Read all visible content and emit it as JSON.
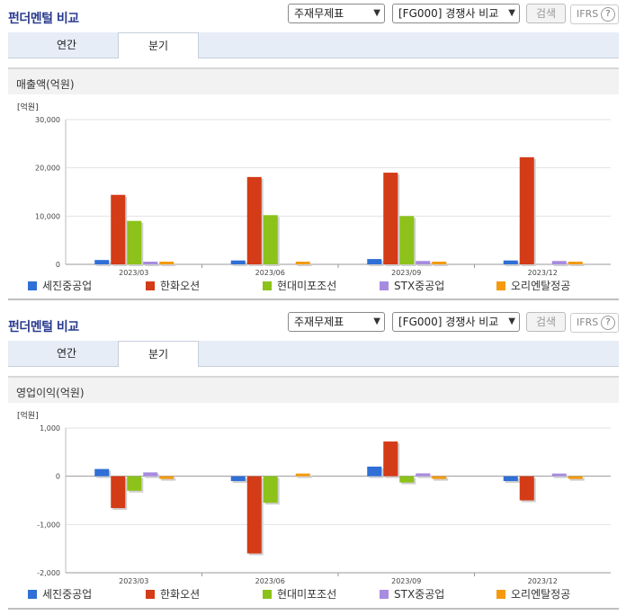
{
  "panels": [
    {
      "title": "펀더멘털 비교",
      "select1": "주재무제표",
      "select2": "[FG000] 경쟁사 비교",
      "search_btn": "검색",
      "ifrs": "IFRS",
      "tabs": [
        "연간",
        "분기"
      ],
      "active_tab": 1,
      "section_title": "매출액(억원)"
    },
    {
      "title": "펀더멘털 비교",
      "select1": "주재무제표",
      "select2": "[FG000] 경쟁사 비교",
      "search_btn": "검색",
      "ifrs": "IFRS",
      "tabs": [
        "연간",
        "분기"
      ],
      "active_tab": 1,
      "section_title": "영업이익(억원)"
    }
  ],
  "colors": [
    "#2f6fd6",
    "#d43b17",
    "#8cc21a",
    "#a78be0",
    "#f59a0d"
  ],
  "chart_data": [
    {
      "type": "bar",
      "unit_label": "[억원]",
      "categories": [
        "2023/03",
        "2023/06",
        "2023/09",
        "2023/12"
      ],
      "ylim": [
        0,
        30000
      ],
      "yticks": [
        0,
        10000,
        20000,
        30000
      ],
      "ytick_labels": [
        "0",
        "10,000",
        "20,000",
        "30,000"
      ],
      "series": [
        {
          "name": "세진중공업",
          "values": [
            900,
            800,
            1100,
            800
          ]
        },
        {
          "name": "한화오션",
          "values": [
            14400,
            18100,
            19000,
            22200
          ]
        },
        {
          "name": "현대미포조선",
          "values": [
            9000,
            10200,
            10000,
            0
          ]
        },
        {
          "name": "STX중공업",
          "values": [
            500,
            0,
            700,
            700
          ]
        },
        {
          "name": "오리엔탈정공",
          "values": [
            400,
            400,
            500,
            500
          ]
        }
      ]
    },
    {
      "type": "bar",
      "unit_label": "[억원]",
      "categories": [
        "2023/03",
        "2023/06",
        "2023/09",
        "2023/12"
      ],
      "ylim": [
        -2000,
        1000
      ],
      "yticks": [
        -2000,
        -1000,
        0,
        1000
      ],
      "ytick_labels": [
        "-2,000",
        "-1,000",
        "0",
        "1,000"
      ],
      "series": [
        {
          "name": "세진중공업",
          "values": [
            150,
            -100,
            200,
            -100
          ]
        },
        {
          "name": "한화오션",
          "values": [
            -660,
            -1600,
            720,
            -500
          ]
        },
        {
          "name": "현대미포조선",
          "values": [
            -300,
            -550,
            -130,
            0
          ]
        },
        {
          "name": "STX중공업",
          "values": [
            80,
            0,
            60,
            50
          ]
        },
        {
          "name": "오리엔탈정공",
          "values": [
            -40,
            40,
            -40,
            -40
          ]
        }
      ]
    }
  ]
}
